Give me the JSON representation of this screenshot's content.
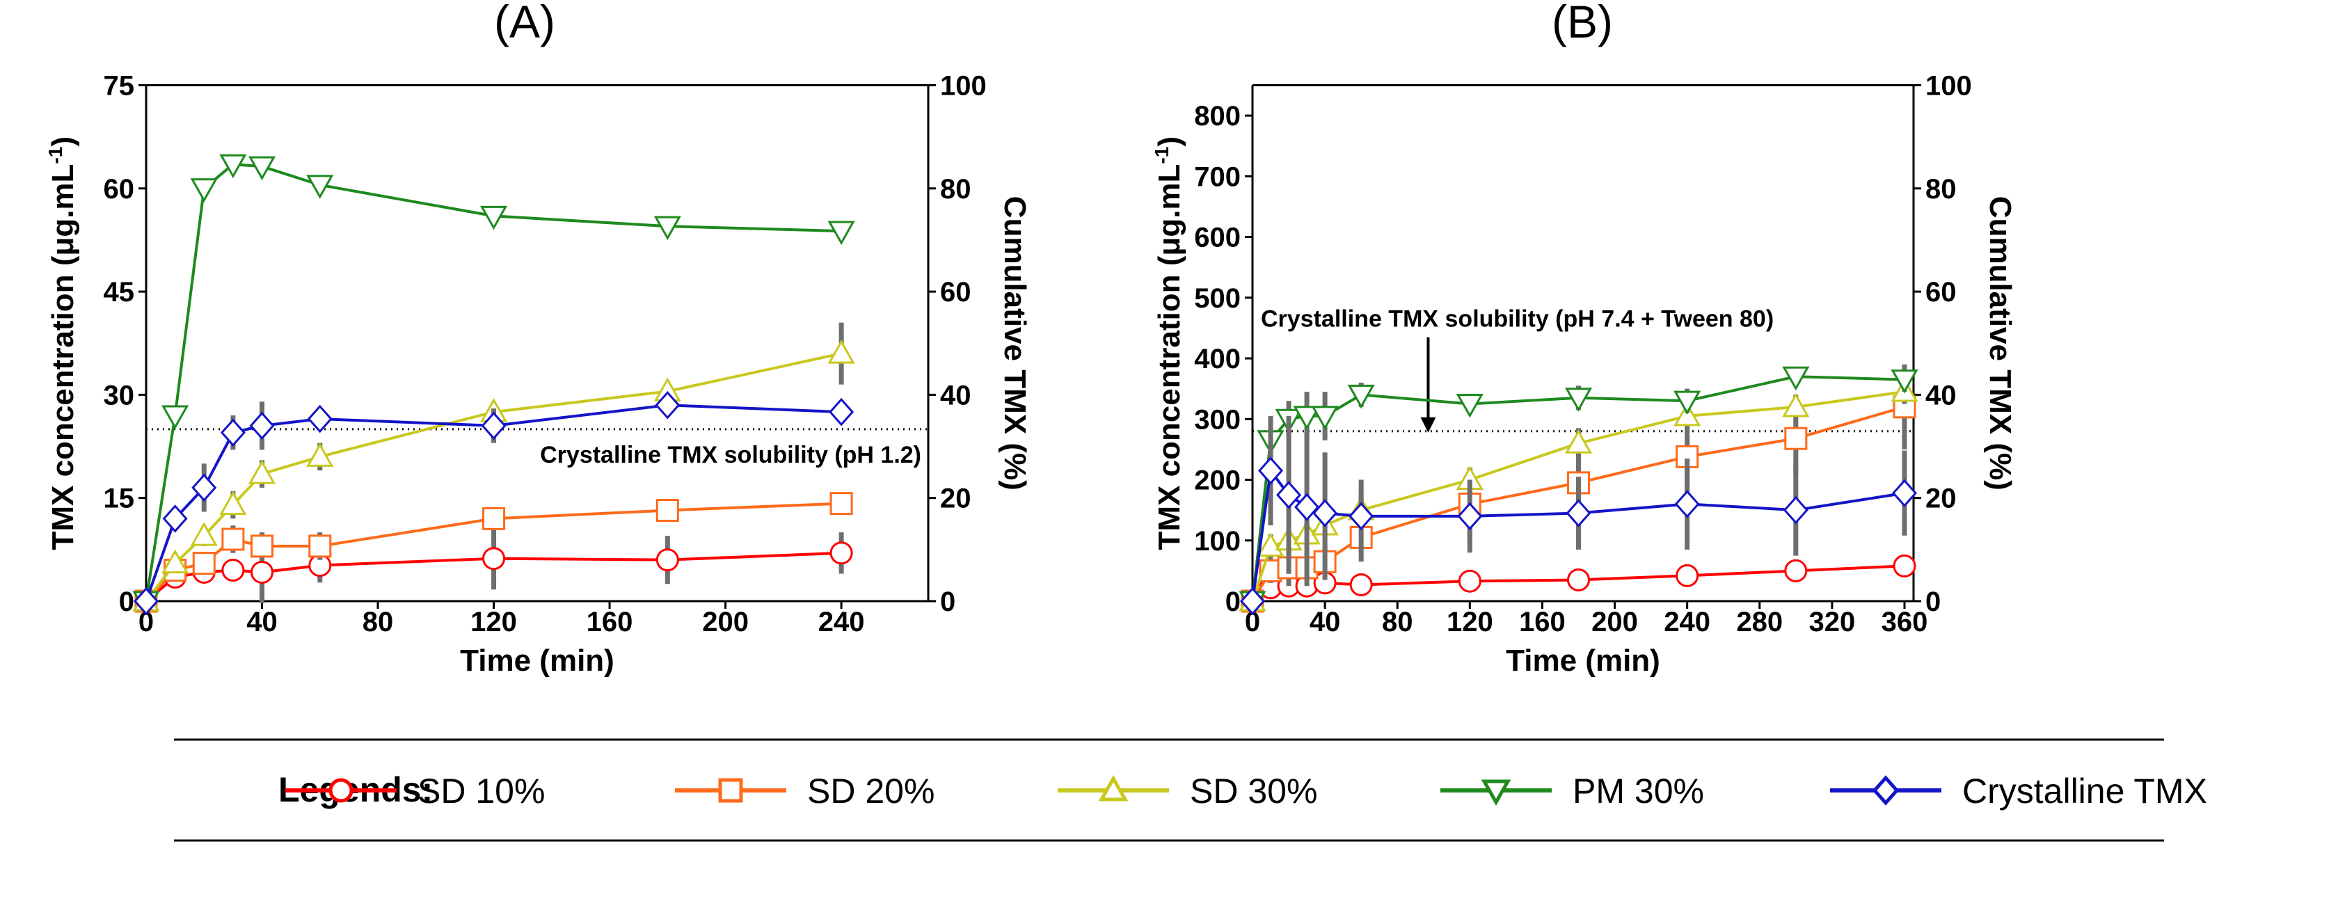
{
  "chart_data": [
    {
      "type": "line",
      "panel_title": "(A)",
      "xlabel": "Time  (min)",
      "ylabel_left": "TMX concentration (μg.mL",
      "ylabel_left_sup": "-1",
      "ylabel_left_close": ")",
      "ylabel_right": "Cumulative TMX (%)",
      "xlim": [
        0,
        270
      ],
      "ylim_left": [
        0,
        75
      ],
      "ylim_right": [
        0,
        100
      ],
      "xticks": [
        0,
        40,
        80,
        120,
        160,
        200,
        240
      ],
      "yticks_left": [
        0,
        15,
        30,
        45,
        60,
        75
      ],
      "yticks_right": [
        0,
        20,
        40,
        60,
        80,
        100
      ],
      "reference_line": 25,
      "annotation": "Crystalline TMX solubility (pH 1.2)",
      "series": [
        {
          "name": "SD 10%",
          "x": [
            0,
            10,
            20,
            30,
            40,
            60,
            120,
            180,
            240
          ],
          "values": [
            0,
            3.5,
            4.2,
            4.5,
            4.2,
            5.2,
            6.2,
            6.0,
            7.0
          ],
          "err": [
            0,
            1.0,
            1.5,
            1.5,
            4.5,
            2.5,
            4.5,
            3.5,
            3.0
          ]
        },
        {
          "name": "SD 20%",
          "x": [
            0,
            10,
            20,
            30,
            40,
            60,
            120,
            180,
            240
          ],
          "values": [
            0,
            4.5,
            5.5,
            9.0,
            8.0,
            8.0,
            12.0,
            13.2,
            14.2
          ],
          "err": [
            0,
            1.0,
            1.5,
            2.0,
            2.0,
            2.0,
            1.5,
            1.5,
            1.5
          ]
        },
        {
          "name": "SD 30%",
          "x": [
            0,
            10,
            20,
            30,
            40,
            60,
            120,
            180,
            240
          ],
          "values": [
            0,
            5.5,
            9.5,
            14.0,
            18.5,
            21.0,
            27.5,
            30.5,
            36.0
          ],
          "err": [
            0,
            1.0,
            1.5,
            2.0,
            2.0,
            2.0,
            1.5,
            1.5,
            4.5
          ]
        },
        {
          "name": "PM 30%",
          "x": [
            0,
            10,
            20,
            30,
            40,
            60,
            120,
            180,
            240
          ],
          "values": [
            0,
            27.0,
            60.0,
            63.5,
            63.2,
            60.5,
            56.0,
            54.5,
            53.8
          ],
          "err": [
            0,
            0,
            0,
            0,
            0,
            0,
            0,
            0,
            0
          ]
        },
        {
          "name": "Crystalline TMX",
          "x": [
            0,
            10,
            20,
            30,
            40,
            60,
            120,
            180,
            240
          ],
          "values": [
            0,
            12.0,
            16.5,
            24.5,
            25.5,
            26.5,
            25.5,
            28.5,
            27.5
          ],
          "err": [
            0,
            1.5,
            3.5,
            2.5,
            3.5,
            1.5,
            2.5,
            1.5,
            1.5
          ]
        }
      ]
    },
    {
      "type": "line",
      "panel_title": "(B)",
      "xlabel": "Time (min)",
      "ylabel_left": "TMX concentration (μg.mL",
      "ylabel_left_sup": "-1",
      "ylabel_left_close": ")",
      "ylabel_right": "Cumulative TMX (%)",
      "xlim": [
        0,
        365
      ],
      "ylim_left": [
        0,
        850
      ],
      "ylim_right": [
        0,
        100
      ],
      "xticks": [
        0,
        40,
        80,
        120,
        160,
        200,
        240,
        280,
        320,
        360
      ],
      "yticks_left": [
        0,
        100,
        200,
        300,
        400,
        500,
        600,
        700,
        800
      ],
      "yticks_right": [
        0,
        20,
        40,
        60,
        80,
        100
      ],
      "reference_line": 280,
      "annotation": "Crystalline TMX solubility (pH 7.4 + Tween 80)",
      "arrow_x": 97,
      "series": [
        {
          "name": "SD 10%",
          "x": [
            0,
            10,
            20,
            30,
            40,
            60,
            120,
            180,
            240,
            300,
            360
          ],
          "values": [
            0,
            22,
            25,
            25,
            30,
            27,
            33,
            35,
            42,
            50,
            58
          ],
          "err": [
            0,
            5,
            5,
            5,
            5,
            5,
            5,
            5,
            5,
            5,
            5
          ]
        },
        {
          "name": "SD 20%",
          "x": [
            0,
            10,
            20,
            30,
            40,
            60,
            120,
            180,
            240,
            300,
            360
          ],
          "values": [
            0,
            50,
            55,
            55,
            65,
            105,
            160,
            195,
            238,
            268,
            320
          ],
          "err": [
            0,
            20,
            30,
            30,
            30,
            40,
            60,
            60,
            60,
            60,
            70
          ]
        },
        {
          "name": "SD 30%",
          "x": [
            0,
            10,
            20,
            30,
            40,
            60,
            120,
            180,
            240,
            300,
            360
          ],
          "values": [
            0,
            90,
            100,
            110,
            125,
            150,
            200,
            260,
            305,
            320,
            345
          ],
          "err": [
            0,
            20,
            20,
            20,
            20,
            25,
            20,
            25,
            20,
            20,
            20
          ]
        },
        {
          "name": "PM 30%",
          "x": [
            0,
            10,
            20,
            30,
            40,
            60,
            120,
            180,
            240,
            300,
            360
          ],
          "values": [
            0,
            265,
            300,
            305,
            305,
            340,
            325,
            335,
            330,
            370,
            365
          ],
          "err": [
            0,
            30,
            30,
            40,
            40,
            20,
            10,
            20,
            20,
            10,
            20
          ]
        },
        {
          "name": "Crystalline TMX",
          "x": [
            0,
            10,
            20,
            30,
            40,
            60,
            120,
            180,
            240,
            300,
            360
          ],
          "values": [
            0,
            215,
            175,
            155,
            145,
            140,
            140,
            145,
            160,
            150,
            178
          ],
          "err": [
            0,
            90,
            130,
            120,
            100,
            60,
            60,
            60,
            75,
            75,
            70
          ]
        }
      ]
    }
  ],
  "legend": {
    "title": "Legends:",
    "items": [
      {
        "name": "SD 10%",
        "color": "#ff0000",
        "marker": "circle"
      },
      {
        "name": "SD 20%",
        "color": "#ff6a1a",
        "marker": "square"
      },
      {
        "name": "SD 30%",
        "color": "#c8c81e",
        "marker": "triangle-up"
      },
      {
        "name": "PM 30%",
        "color": "#1e8a1e",
        "marker": "triangle-down"
      },
      {
        "name": "Crystalline TMX",
        "color": "#1414c8",
        "marker": "diamond"
      }
    ]
  }
}
